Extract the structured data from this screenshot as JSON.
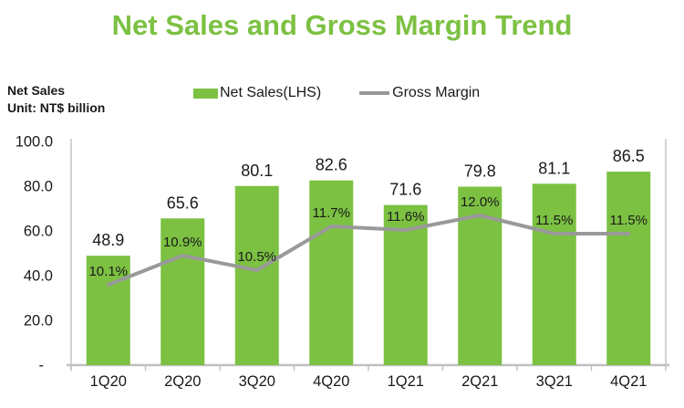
{
  "title": "Net Sales and Gross Margin Trend",
  "axis_note": {
    "line1": "Net Sales",
    "line2": "Unit: NT$ billion"
  },
  "legend": {
    "bar_label": "Net Sales(LHS)",
    "line_label": "Gross Margin"
  },
  "colors": {
    "title": "#7CC142",
    "bar": "#7CC142",
    "line": "#999999",
    "axis": "#BFBFBF",
    "value_label": "#1A1A1A",
    "pct_label": "#FFFFFF",
    "background": "#FFFFFF"
  },
  "chart_data": {
    "type": "bar",
    "subtype": "bar-with-line-overlay",
    "title": "Net Sales and Gross Margin Trend",
    "categories": [
      "1Q20",
      "2Q20",
      "3Q20",
      "4Q20",
      "1Q21",
      "2Q21",
      "3Q21",
      "4Q21"
    ],
    "series": [
      {
        "name": "Net Sales(LHS)",
        "type": "bar",
        "axis": "left",
        "unit": "NT$ billion",
        "values": [
          48.9,
          65.6,
          80.1,
          82.6,
          71.6,
          79.8,
          81.1,
          86.5
        ],
        "labels": [
          "48.9",
          "65.6",
          "80.1",
          "82.6",
          "71.6",
          "79.8",
          "81.1",
          "86.5"
        ],
        "color": "#7CC142"
      },
      {
        "name": "Gross Margin",
        "type": "line",
        "axis": "right",
        "unit": "%",
        "values": [
          10.1,
          10.9,
          10.5,
          11.7,
          11.6,
          12.0,
          11.5,
          11.5
        ],
        "labels": [
          "10.1%",
          "10.9%",
          "10.5%",
          "11.7%",
          "11.6%",
          "12.0%",
          "11.5%",
          "11.5%"
        ],
        "color": "#999999",
        "label_color": "#FFFFFF"
      }
    ],
    "xlabel": "",
    "ylabel": "Net Sales, NT$ billion",
    "y_axis_left": {
      "range": [
        0,
        100
      ],
      "tick_values": [
        100,
        80,
        60,
        40,
        20,
        0
      ],
      "tick_labels": [
        "100.0",
        "80.0",
        "60.0",
        "40.0",
        "20.0",
        "-"
      ]
    },
    "y_axis_right": {
      "labels_visible": false
    },
    "legend_position": "top",
    "grid": false
  }
}
